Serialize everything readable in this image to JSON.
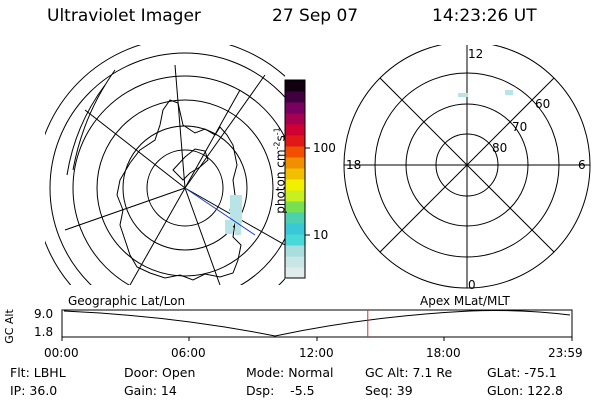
{
  "header": {
    "instrument": "Ultraviolet Imager",
    "date": "27 Sep 07",
    "time": "14:23:26 UT"
  },
  "colorbar": {
    "label_prefix": "photon cm",
    "label_exp1": "-2",
    "label_mid": "s",
    "label_exp2": "-1",
    "tick_100": "100",
    "tick_10": "10",
    "colors": [
      "#e0ecec",
      "#c8e6e6",
      "#a8dede",
      "#48d8d8",
      "#38c8d8",
      "#4cd0b0",
      "#78e050",
      "#c8f020",
      "#f0f000",
      "#f0c000",
      "#f09000",
      "#f05000",
      "#e01818",
      "#d00030",
      "#a80050",
      "#780060",
      "#400040",
      "#100010"
    ]
  },
  "geo_map": {
    "caption": "Geographic Lat/Lon"
  },
  "apex_plot": {
    "caption": "Apex MLat/MLT",
    "mlt_12": "12",
    "mlt_18": "18",
    "mlt_6": "6",
    "mlt_0": "0",
    "lat_60": "60",
    "lat_70": "70",
    "lat_80": "80"
  },
  "altitude_plot": {
    "ylabel": "GC Alt",
    "y_top": "9.0",
    "y_bottom": "1.8",
    "x_ticks": [
      "00:00",
      "06:00",
      "12:00",
      "18:00",
      "23:59"
    ],
    "current_time_hours": 14.39
  },
  "status": {
    "filter": "Flt: LBHL",
    "ip": "IP: 36.0",
    "door": "Door: Open",
    "gain": "Gain: 14",
    "mode": "Mode: Normal",
    "dsp": "Dsp:    -5.5",
    "gc_alt": "GC Alt: 7.1 Re",
    "seq": "Seq: 39",
    "glat": "GLat: -75.1",
    "glon": "GLon: 122.8"
  },
  "colors": {
    "current_time_marker": "#d03030",
    "track_line": "#2040c0",
    "aurora_patch": "#b8e4e8"
  }
}
